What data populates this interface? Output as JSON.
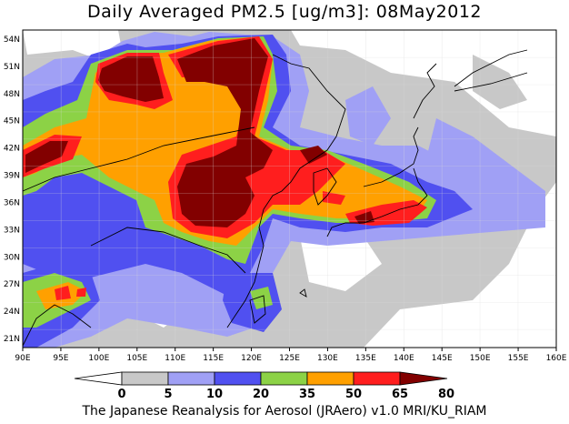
{
  "title": "Daily Averaged PM2.5 [ug/m3]: 08May2012",
  "footer": "The Japanese Reanalysis for Aerosol (JRAero) v1.0 MRI/KU_RIAM",
  "map": {
    "lon_range": [
      90,
      160
    ],
    "lat_range": [
      20,
      55
    ],
    "x_ticks": [
      "90E",
      "95E",
      "100E",
      "105E",
      "110E",
      "115E",
      "120E",
      "125E",
      "130E",
      "135E",
      "140E",
      "145E",
      "150E",
      "155E",
      "160E"
    ],
    "y_ticks": [
      "54N",
      "51N",
      "48N",
      "45N",
      "42N",
      "39N",
      "36N",
      "33N",
      "30N",
      "27N",
      "24N",
      "21N"
    ],
    "grid": true
  },
  "colorbar": {
    "levels": [
      "0",
      "5",
      "10",
      "20",
      "35",
      "50",
      "65",
      "80"
    ],
    "colors": [
      "#ffffff",
      "#c8c8c8",
      "#a0a0f5",
      "#5050f0",
      "#8cd246",
      "#ffa000",
      "#ff1e1e",
      "#820000"
    ]
  }
}
